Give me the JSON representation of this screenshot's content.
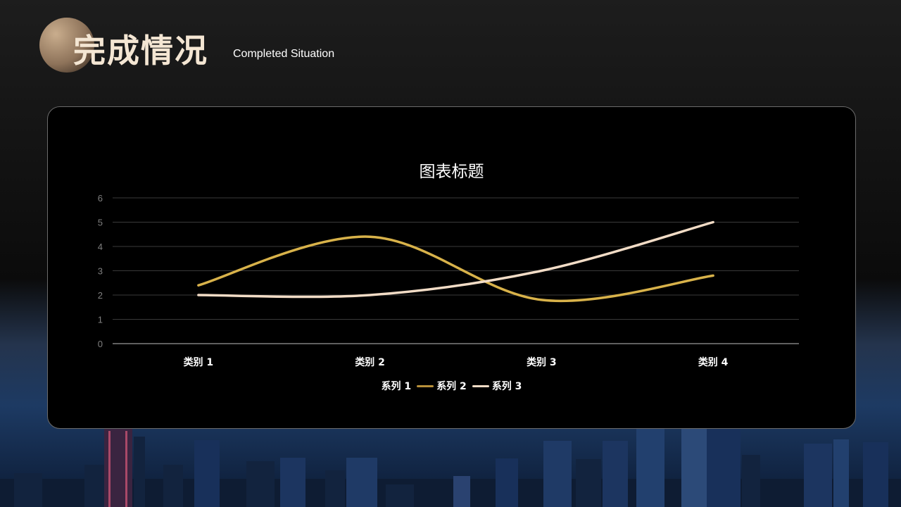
{
  "header": {
    "title_cn": "完成情况",
    "title_en": "Completed Situation"
  },
  "chart_data": {
    "type": "line",
    "title": "图表标题",
    "categories": [
      "类别 1",
      "类别 2",
      "类别 3",
      "类别 4"
    ],
    "ylim": [
      0,
      6
    ],
    "yticks": [
      0,
      1,
      2,
      3,
      4,
      5,
      6
    ],
    "grid": true,
    "smooth": true,
    "legend_position": "bottom",
    "series": [
      {
        "name": "系列 1",
        "values": [
          2.4,
          4.4,
          1.8,
          2.8
        ],
        "color": "#d8b24a"
      },
      {
        "name": "系列 2",
        "values": [
          null,
          null,
          null,
          null
        ],
        "color": "#b8903a"
      },
      {
        "name": "系列 3",
        "values": [
          2.0,
          2.0,
          3.0,
          5.0
        ],
        "color": "#f2dcc6"
      }
    ],
    "colors": {
      "grid": "#3a3a3a",
      "axis": "#bfbfbf",
      "tick_label": "#7f7f7f",
      "category_label": "#ffffff"
    }
  }
}
